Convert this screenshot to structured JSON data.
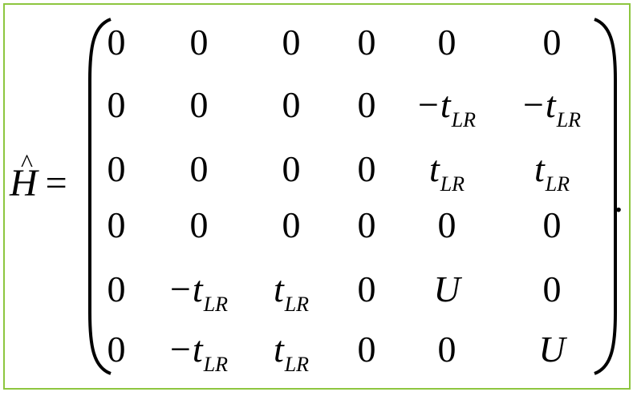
{
  "equation": {
    "lhs_symbol": "H",
    "hat": "^",
    "equals": "=",
    "period": ".",
    "matrix": {
      "rows": [
        [
          "0",
          "0",
          "0",
          "0",
          "0",
          "0"
        ],
        [
          "0",
          "0",
          "0",
          "0",
          "−t_LR",
          "−t_LR"
        ],
        [
          "0",
          "0",
          "0",
          "0",
          "t_LR",
          "t_LR"
        ],
        [
          "0",
          "0",
          "0",
          "0",
          "0",
          "0"
        ],
        [
          "0",
          "−t_LR",
          "t_LR",
          "0",
          "U",
          "0"
        ],
        [
          "0",
          "−t_LR",
          "t_LR",
          "0",
          "0",
          "U"
        ]
      ]
    }
  },
  "colors": {
    "frame_border": "#8dc63f",
    "text": "#000000",
    "background": "#ffffff"
  }
}
